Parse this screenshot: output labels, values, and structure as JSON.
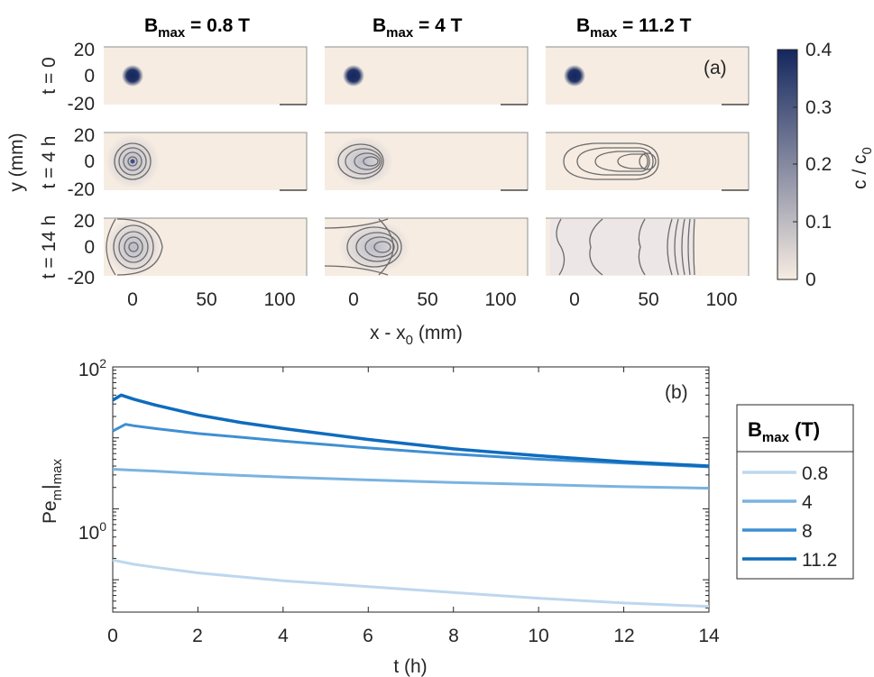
{
  "top": {
    "column_titles": [
      {
        "main": "B",
        "sub": "max",
        "rest": " = 0.8 T"
      },
      {
        "main": "B",
        "sub": "max",
        "rest": " = 4 T"
      },
      {
        "main": "B",
        "sub": "max",
        "rest": " = 11.2 T"
      }
    ],
    "row_labels": [
      "t = 0",
      "t = 4 h",
      "t = 14 h"
    ],
    "ylabel": "y (mm)",
    "xlabel_main": "x - x",
    "xlabel_sub": "0",
    "xlabel_rest": " (mm)",
    "panel_tag": "(a)",
    "x_ticks": [
      "0",
      "50",
      "100"
    ],
    "y_ticks": [
      "20",
      "0",
      "-20"
    ],
    "colorbar": {
      "label_main": "c / c",
      "label_sub": "0",
      "ticks": [
        "0",
        "0.1",
        "0.2",
        "0.3",
        "0.4"
      ],
      "color_low": "#f6ece2",
      "color_high": "#14275e"
    }
  },
  "bottom": {
    "panel_tag": "(b)",
    "ylabel_main": "Pe",
    "ylabel_sub": "m",
    "ylabel_rest": "|",
    "ylabel_sub2": "max",
    "y_ticks": [
      {
        "base": "10",
        "exp": "2"
      },
      {
        "base": "10",
        "exp": "0"
      }
    ],
    "x_ticks": [
      "0",
      "2",
      "4",
      "6",
      "8",
      "10",
      "12",
      "14"
    ],
    "xlabel": "t (h)",
    "legend_title_main": "B",
    "legend_title_sub": "max",
    "legend_title_rest": " (T)"
  },
  "chart_data": [
    {
      "type": "heatmap",
      "title": "",
      "xlabel": "x - x0 (mm)",
      "ylabel": "y (mm)",
      "xlim": [
        -15,
        115
      ],
      "ylim": [
        -20,
        20
      ],
      "color_label": "c / c0",
      "color_range": [
        0,
        0.4
      ],
      "columns": [
        "Bmax = 0.8 T",
        "Bmax = 4 T",
        "Bmax = 11.2 T"
      ],
      "rows": [
        "t = 0",
        "t = 4 h",
        "t = 14 h"
      ],
      "panels": [
        {
          "row": "t = 0",
          "column": "Bmax = 0.8 T",
          "peak_x_mm": 0,
          "peak_c": 0.4
        },
        {
          "row": "t = 0",
          "column": "Bmax = 4 T",
          "peak_x_mm": 0,
          "peak_c": 0.4
        },
        {
          "row": "t = 0",
          "column": "Bmax = 11.2 T",
          "peak_x_mm": 0,
          "peak_c": 0.4
        },
        {
          "row": "t = 4 h",
          "column": "Bmax = 0.8 T",
          "peak_x_mm": 0,
          "peak_c": 0.12
        },
        {
          "row": "t = 4 h",
          "column": "Bmax = 4 T",
          "peak_x_mm": 10,
          "peak_c": 0.1
        },
        {
          "row": "t = 4 h",
          "column": "Bmax = 11.2 T",
          "peak_x_mm": 50,
          "peak_c": 0.05
        },
        {
          "row": "t = 14 h",
          "column": "Bmax = 0.8 T",
          "peak_x_mm": 0,
          "peak_c": 0.05
        },
        {
          "row": "t = 14 h",
          "column": "Bmax = 4 T",
          "peak_x_mm": 15,
          "peak_c": 0.05
        },
        {
          "row": "t = 14 h",
          "column": "Bmax = 11.2 T",
          "peak_x_mm": 70,
          "peak_c": 0.03
        }
      ]
    },
    {
      "type": "line",
      "title": "",
      "xlabel": "t (h)",
      "ylabel": "Pe_m|max",
      "xlim": [
        0,
        14
      ],
      "ylim": [
        0.035,
        100
      ],
      "y_scale": "log",
      "legend_title": "Bmax (T)",
      "legend_position": "right-outside",
      "series": [
        {
          "name": "0.8",
          "color": "#bdd7ee",
          "x": [
            0,
            0.5,
            1,
            2,
            3,
            4,
            6,
            8,
            10,
            12,
            14
          ],
          "y": [
            0.19,
            0.165,
            0.15,
            0.125,
            0.11,
            0.097,
            0.08,
            0.066,
            0.055,
            0.047,
            0.042
          ]
        },
        {
          "name": "4",
          "color": "#7ab3e0",
          "x": [
            0,
            0.5,
            1,
            2,
            3,
            4,
            6,
            8,
            10,
            12,
            14
          ],
          "y": [
            3.6,
            3.5,
            3.4,
            3.15,
            2.95,
            2.8,
            2.55,
            2.35,
            2.2,
            2.05,
            1.95
          ]
        },
        {
          "name": "8",
          "color": "#3f8fd2",
          "x": [
            0,
            0.3,
            0.5,
            1,
            2,
            3,
            4,
            6,
            8,
            10,
            12,
            14
          ],
          "y": [
            12.5,
            15.5,
            14.8,
            13.5,
            11.5,
            10.2,
            9.0,
            7.2,
            5.9,
            5.0,
            4.4,
            3.9
          ]
        },
        {
          "name": "11.2",
          "color": "#0f6cbd",
          "x": [
            0,
            0.2,
            0.5,
            1,
            2,
            3,
            4,
            6,
            8,
            10,
            12,
            14
          ],
          "y": [
            34,
            40,
            35,
            29,
            21,
            16.5,
            13.5,
            9.5,
            7.0,
            5.6,
            4.6,
            4.0
          ]
        }
      ]
    }
  ]
}
